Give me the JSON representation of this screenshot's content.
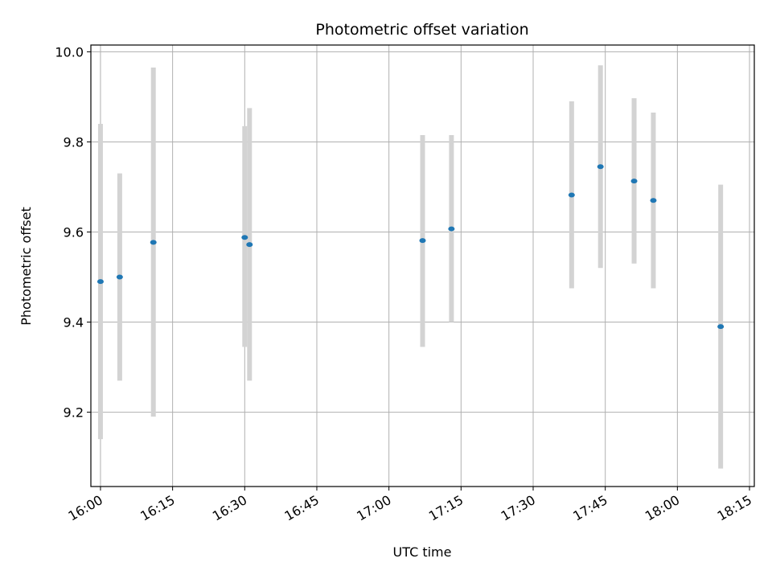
{
  "chart_data": {
    "type": "scatter",
    "title": "Photometric offset variation",
    "xlabel": "UTC time",
    "ylabel": "Photometric offset",
    "x_axis": {
      "kind": "time",
      "range": [
        "15:58",
        "18:16"
      ],
      "ticks": [
        "16:00",
        "16:15",
        "16:30",
        "16:45",
        "17:00",
        "17:15",
        "17:30",
        "17:45",
        "18:00",
        "18:15"
      ]
    },
    "y_axis": {
      "range": [
        9.035,
        10.015
      ],
      "ticks": [
        "9.2",
        "9.4",
        "9.6",
        "9.8",
        "10.0"
      ]
    },
    "grid": true,
    "colors": {
      "marker": "#1f77b4",
      "errorbar": "#d3d3d3",
      "grid": "#b0b0b0"
    },
    "series": [
      {
        "points": [
          {
            "x": "16:00",
            "y": 9.49,
            "ylow": 9.14,
            "yhigh": 9.84
          },
          {
            "x": "16:04",
            "y": 9.5,
            "ylow": 9.27,
            "yhigh": 9.73
          },
          {
            "x": "16:11",
            "y": 9.577,
            "ylow": 9.19,
            "yhigh": 9.965
          },
          {
            "x": "16:30",
            "y": 9.588,
            "ylow": 9.345,
            "yhigh": 9.835
          },
          {
            "x": "16:31",
            "y": 9.572,
            "ylow": 9.27,
            "yhigh": 9.875
          },
          {
            "x": "17:07",
            "y": 9.581,
            "ylow": 9.345,
            "yhigh": 9.815
          },
          {
            "x": "17:13",
            "y": 9.607,
            "ylow": 9.4,
            "yhigh": 9.815
          },
          {
            "x": "17:38",
            "y": 9.682,
            "ylow": 9.475,
            "yhigh": 9.89
          },
          {
            "x": "17:44",
            "y": 9.745,
            "ylow": 9.52,
            "yhigh": 9.97
          },
          {
            "x": "17:51",
            "y": 9.713,
            "ylow": 9.53,
            "yhigh": 9.897
          },
          {
            "x": "17:55",
            "y": 9.67,
            "ylow": 9.475,
            "yhigh": 9.865
          },
          {
            "x": "18:09",
            "y": 9.39,
            "ylow": 9.075,
            "yhigh": 9.705
          }
        ]
      }
    ]
  }
}
